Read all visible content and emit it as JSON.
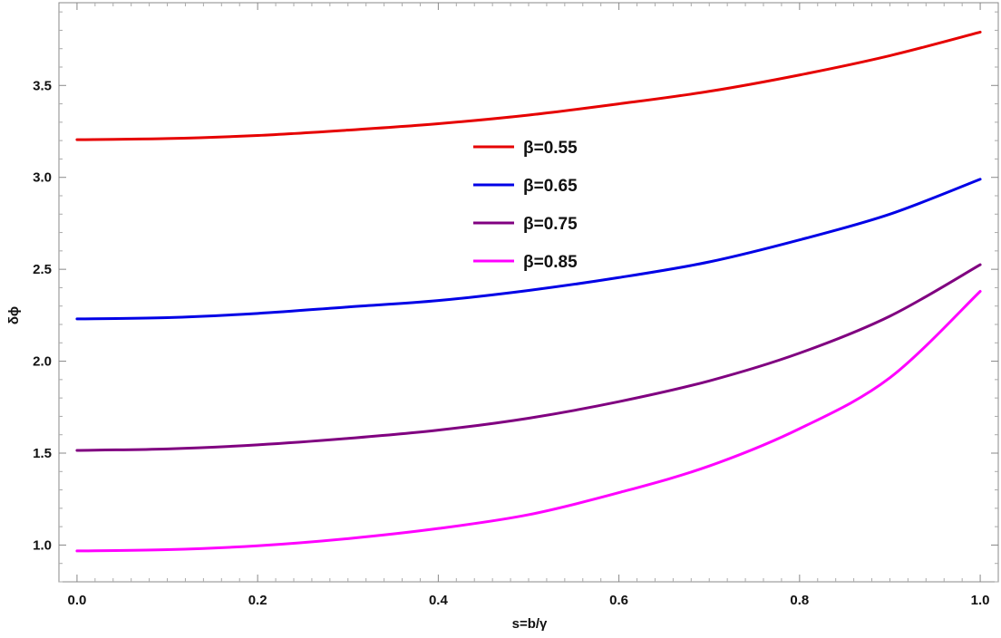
{
  "chart_data": {
    "type": "line",
    "title": "",
    "xlabel": "s=b/γ",
    "ylabel": "δϕ",
    "xlim": [
      -0.02,
      1.02
    ],
    "ylim": [
      0.8,
      3.95
    ],
    "xticks": [
      0.0,
      0.2,
      0.4,
      0.6,
      0.8,
      1.0
    ],
    "xtick_labels": [
      "0.0",
      "0.2",
      "0.4",
      "0.6",
      "0.8",
      "1.0"
    ],
    "yticks": [
      1.0,
      1.5,
      2.0,
      2.5,
      3.0,
      3.5
    ],
    "ytick_labels": [
      "1.0",
      "1.5",
      "2.0",
      "2.5",
      "3.0",
      "3.5"
    ],
    "grid": false,
    "legend_position": "center-top",
    "x": [
      0.0,
      0.1,
      0.2,
      0.3,
      0.4,
      0.5,
      0.6,
      0.7,
      0.8,
      0.9,
      1.0
    ],
    "series": [
      {
        "name": "β=0.55",
        "color": "#e60000",
        "values": [
          3.205,
          3.211,
          3.228,
          3.257,
          3.292,
          3.339,
          3.4,
          3.468,
          3.557,
          3.662,
          3.79
        ]
      },
      {
        "name": "β=0.65",
        "color": "#0000e6",
        "values": [
          2.23,
          2.237,
          2.26,
          2.295,
          2.33,
          2.385,
          2.455,
          2.54,
          2.66,
          2.8,
          2.99
        ]
      },
      {
        "name": "β=0.75",
        "color": "#800080",
        "values": [
          1.515,
          1.523,
          1.545,
          1.58,
          1.625,
          1.69,
          1.78,
          1.893,
          2.044,
          2.245,
          2.525
        ]
      },
      {
        "name": "β=0.85",
        "color": "#ff00ff",
        "values": [
          0.968,
          0.975,
          0.996,
          1.035,
          1.09,
          1.165,
          1.285,
          1.43,
          1.633,
          1.91,
          2.38
        ]
      }
    ]
  }
}
